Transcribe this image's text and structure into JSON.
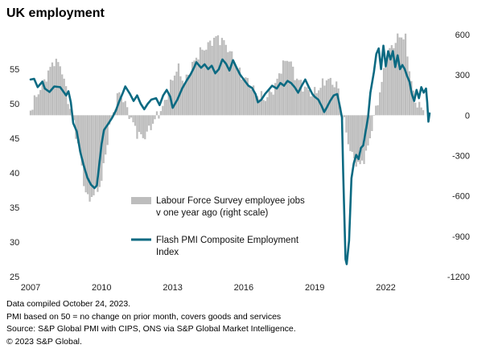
{
  "header": {
    "title": "UK employment"
  },
  "chart_data": {
    "type": "bar+line",
    "title": "UK employment",
    "x_range": [
      2007,
      2023.75
    ],
    "x_ticks": [
      2007,
      2010,
      2013,
      2016,
      2019,
      2022
    ],
    "x_tick_labels": [
      "2007",
      "2010",
      "2013",
      "2016",
      "2019",
      "2022"
    ],
    "left_axis": {
      "range": [
        25,
        60
      ],
      "ticks": [
        25,
        30,
        35,
        40,
        45,
        50,
        55
      ],
      "tick_labels": [
        "25",
        "30",
        "35",
        "40",
        "45",
        "50",
        "55"
      ]
    },
    "right_axis": {
      "range": [
        -1200,
        600
      ],
      "ticks": [
        -1200,
        -900,
        -600,
        -300,
        0,
        300,
        600
      ],
      "tick_labels": [
        "-1200",
        "-900",
        "-600",
        "-300",
        "0",
        "300",
        "600"
      ]
    },
    "legend": [
      {
        "name": "Labour Force Survey employee jobs",
        "name_line2": "v one year ago (right scale)",
        "color": "#bdbdbd",
        "kind": "bar"
      },
      {
        "name": "Flash PMI Composite Employment",
        "name_line2": "Index",
        "color": "#0b6a82",
        "kind": "line"
      }
    ],
    "series": [
      {
        "name": "Labour Force Survey employee jobs v one year ago (right scale)",
        "axis": "right",
        "anchors": [
          [
            2007.0,
            40
          ],
          [
            2007.3,
            160
          ],
          [
            2007.7,
            300
          ],
          [
            2008.0,
            410
          ],
          [
            2008.3,
            360
          ],
          [
            2008.6,
            100
          ],
          [
            2008.75,
            -10
          ],
          [
            2008.9,
            -120
          ],
          [
            2009.1,
            -300
          ],
          [
            2009.25,
            -500
          ],
          [
            2009.45,
            -650
          ],
          [
            2009.6,
            -590
          ],
          [
            2009.8,
            -560
          ],
          [
            2010.0,
            -490
          ],
          [
            2010.15,
            -300
          ],
          [
            2010.35,
            -80
          ],
          [
            2010.55,
            60
          ],
          [
            2010.75,
            170
          ],
          [
            2010.9,
            120
          ],
          [
            2011.1,
            40
          ],
          [
            2011.3,
            -50
          ],
          [
            2011.5,
            -130
          ],
          [
            2011.75,
            -170
          ],
          [
            2012.0,
            -110
          ],
          [
            2012.25,
            -30
          ],
          [
            2012.6,
            60
          ],
          [
            2012.9,
            220
          ],
          [
            2013.2,
            360
          ],
          [
            2013.5,
            240
          ],
          [
            2013.8,
            360
          ],
          [
            2014.1,
            460
          ],
          [
            2014.5,
            520
          ],
          [
            2014.8,
            580
          ],
          [
            2015.1,
            560
          ],
          [
            2015.4,
            480
          ],
          [
            2015.8,
            320
          ],
          [
            2016.2,
            250
          ],
          [
            2016.5,
            160
          ],
          [
            2016.9,
            120
          ],
          [
            2017.3,
            200
          ],
          [
            2017.6,
            360
          ],
          [
            2017.9,
            430
          ],
          [
            2018.2,
            280
          ],
          [
            2018.6,
            200
          ],
          [
            2018.9,
            160
          ],
          [
            2019.2,
            200
          ],
          [
            2019.5,
            270
          ],
          [
            2019.8,
            240
          ],
          [
            2020.0,
            200
          ],
          [
            2020.1,
            40
          ],
          [
            2020.3,
            -90
          ],
          [
            2020.45,
            -230
          ],
          [
            2020.6,
            -310
          ],
          [
            2020.9,
            -380
          ],
          [
            2021.2,
            -280
          ],
          [
            2021.5,
            -20
          ],
          [
            2021.8,
            210
          ],
          [
            2022.0,
            400
          ],
          [
            2022.2,
            500
          ],
          [
            2022.4,
            540
          ],
          [
            2022.6,
            600
          ],
          [
            2022.85,
            560
          ],
          [
            2023.0,
            340
          ],
          [
            2023.2,
            120
          ],
          [
            2023.4,
            70
          ],
          [
            2023.6,
            40
          ]
        ]
      },
      {
        "name": "Flash PMI Composite Employment Index",
        "axis": "left",
        "points": [
          [
            2007.0,
            53.5
          ],
          [
            2007.15,
            53.6
          ],
          [
            2007.3,
            52.4
          ],
          [
            2007.5,
            53.2
          ],
          [
            2007.6,
            52.2
          ],
          [
            2007.8,
            51.7
          ],
          [
            2008.0,
            52.5
          ],
          [
            2008.25,
            52.4
          ],
          [
            2008.5,
            51.2
          ],
          [
            2008.6,
            51.8
          ],
          [
            2008.7,
            50.2
          ],
          [
            2008.8,
            47.2
          ],
          [
            2008.95,
            46.0
          ],
          [
            2009.1,
            43.0
          ],
          [
            2009.25,
            41.0
          ],
          [
            2009.4,
            39.3
          ],
          [
            2009.55,
            38.3
          ],
          [
            2009.7,
            37.8
          ],
          [
            2009.8,
            38.2
          ],
          [
            2009.9,
            41.2
          ],
          [
            2010.0,
            44.2
          ],
          [
            2010.1,
            46.2
          ],
          [
            2010.3,
            47.2
          ],
          [
            2010.45,
            48.0
          ],
          [
            2010.6,
            49.0
          ],
          [
            2010.75,
            50.4
          ],
          [
            2010.9,
            51.6
          ],
          [
            2011.0,
            52.5
          ],
          [
            2011.2,
            51.4
          ],
          [
            2011.35,
            50.4
          ],
          [
            2011.5,
            51.2
          ],
          [
            2011.65,
            50.0
          ],
          [
            2011.8,
            49.2
          ],
          [
            2011.95,
            50.0
          ],
          [
            2012.1,
            50.6
          ],
          [
            2012.3,
            50.8
          ],
          [
            2012.45,
            49.8
          ],
          [
            2012.6,
            51.2
          ],
          [
            2012.75,
            52.0
          ],
          [
            2012.9,
            51.0
          ],
          [
            2013.0,
            49.4
          ],
          [
            2013.2,
            50.6
          ],
          [
            2013.4,
            52.2
          ],
          [
            2013.6,
            53.4
          ],
          [
            2013.75,
            54.2
          ],
          [
            2013.9,
            55.2
          ],
          [
            2014.0,
            56.0
          ],
          [
            2014.2,
            55.2
          ],
          [
            2014.35,
            55.7
          ],
          [
            2014.5,
            55.0
          ],
          [
            2014.65,
            55.5
          ],
          [
            2014.8,
            54.4
          ],
          [
            2014.95,
            55.0
          ],
          [
            2015.1,
            56.4
          ],
          [
            2015.25,
            55.8
          ],
          [
            2015.4,
            54.8
          ],
          [
            2015.55,
            56.3
          ],
          [
            2015.7,
            55.2
          ],
          [
            2015.85,
            54.2
          ],
          [
            2016.0,
            53.5
          ],
          [
            2016.2,
            52.6
          ],
          [
            2016.35,
            52.3
          ],
          [
            2016.5,
            51.4
          ],
          [
            2016.6,
            50.2
          ],
          [
            2016.75,
            50.6
          ],
          [
            2016.9,
            51.4
          ],
          [
            2017.05,
            52.0
          ],
          [
            2017.2,
            52.6
          ],
          [
            2017.4,
            52.2
          ],
          [
            2017.55,
            53.0
          ],
          [
            2017.7,
            52.6
          ],
          [
            2017.85,
            53.3
          ],
          [
            2018.0,
            53.0
          ],
          [
            2018.15,
            52.4
          ],
          [
            2018.3,
            51.6
          ],
          [
            2018.45,
            52.6
          ],
          [
            2018.6,
            53.5
          ],
          [
            2018.75,
            52.4
          ],
          [
            2018.9,
            51.4
          ],
          [
            2019.0,
            51.0
          ],
          [
            2019.15,
            50.6
          ],
          [
            2019.3,
            49.6
          ],
          [
            2019.4,
            48.8
          ],
          [
            2019.5,
            49.4
          ],
          [
            2019.65,
            50.4
          ],
          [
            2019.8,
            51.2
          ],
          [
            2019.95,
            51.4
          ],
          [
            2020.05,
            49.8
          ],
          [
            2020.15,
            48.0
          ],
          [
            2020.2,
            40.2
          ],
          [
            2020.25,
            33.8
          ],
          [
            2020.3,
            27.5
          ],
          [
            2020.35,
            26.8
          ],
          [
            2020.45,
            30.2
          ],
          [
            2020.55,
            39.2
          ],
          [
            2020.65,
            41.4
          ],
          [
            2020.75,
            42.6
          ],
          [
            2020.85,
            42.0
          ],
          [
            2020.95,
            43.6
          ],
          [
            2021.05,
            44.0
          ],
          [
            2021.15,
            46.0
          ],
          [
            2021.25,
            48.0
          ],
          [
            2021.35,
            51.6
          ],
          [
            2021.5,
            54.6
          ],
          [
            2021.6,
            57.2
          ],
          [
            2021.7,
            58.0
          ],
          [
            2021.8,
            55.0
          ],
          [
            2021.9,
            58.4
          ],
          [
            2022.0,
            55.4
          ],
          [
            2022.1,
            57.6
          ],
          [
            2022.2,
            56.4
          ],
          [
            2022.3,
            57.6
          ],
          [
            2022.4,
            55.3
          ],
          [
            2022.5,
            57.0
          ],
          [
            2022.6,
            55.0
          ],
          [
            2022.7,
            55.6
          ],
          [
            2022.8,
            55.0
          ],
          [
            2022.9,
            54.0
          ],
          [
            2023.0,
            53.2
          ],
          [
            2023.1,
            51.4
          ],
          [
            2023.2,
            50.4
          ],
          [
            2023.3,
            52.0
          ],
          [
            2023.4,
            50.8
          ],
          [
            2023.5,
            52.4
          ],
          [
            2023.6,
            51.6
          ],
          [
            2023.7,
            52.2
          ],
          [
            2023.75,
            50.2
          ],
          [
            2023.8,
            47.4
          ],
          [
            2023.85,
            48.6
          ]
        ]
      }
    ]
  },
  "footer": {
    "line1": "Data compiled October 24, 2023.",
    "line2": "PMI based on 50 = no change on prior month, covers goods and services",
    "line3": "Source: S&P Global PMI with CIPS, ONS via S&P Global Market Intelligence.",
    "line4": "© 2023 S&P Global."
  }
}
